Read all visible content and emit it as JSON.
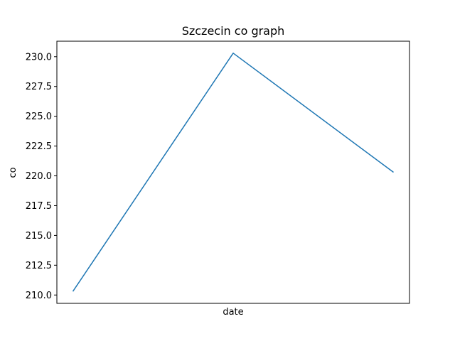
{
  "chart_data": {
    "type": "line",
    "title": "Szczecin co graph",
    "xlabel": "date",
    "ylabel": "co",
    "ylim": [
      209.3,
      231.3
    ],
    "yticks": [
      "210.0",
      "212.5",
      "215.0",
      "217.5",
      "220.0",
      "222.5",
      "225.0",
      "227.5",
      "230.0"
    ],
    "x_tick_labels_shown": false,
    "grid": false,
    "series": [
      {
        "color": "#1f77b4",
        "values": [
          210.3,
          230.3,
          220.3
        ]
      }
    ]
  }
}
